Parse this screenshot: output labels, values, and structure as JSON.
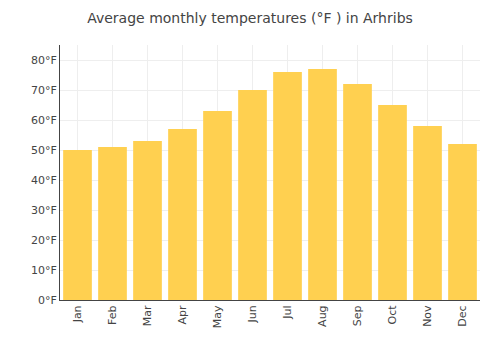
{
  "chart_data": {
    "type": "bar",
    "title": "Average monthly temperatures (°F ) in Arhribs",
    "categories": [
      "Jan",
      "Feb",
      "Mar",
      "Apr",
      "May",
      "Jun",
      "Jul",
      "Aug",
      "Sep",
      "Oct",
      "Nov",
      "Dec"
    ],
    "values": [
      50,
      51,
      53,
      57,
      63,
      70,
      76,
      77,
      72,
      65,
      58,
      52
    ],
    "color": "#FFD050",
    "ylim": [
      0,
      85
    ],
    "yticks": [
      {
        "value": 0,
        "label": "0°F"
      },
      {
        "value": 10,
        "label": "10°F"
      },
      {
        "value": 20,
        "label": "20°F"
      },
      {
        "value": 30,
        "label": "30°F"
      },
      {
        "value": 40,
        "label": "40°F"
      },
      {
        "value": 50,
        "label": "50°F"
      },
      {
        "value": 60,
        "label": "60°F"
      },
      {
        "value": 70,
        "label": "70°F"
      },
      {
        "value": 80,
        "label": "80°F"
      }
    ],
    "grid": true
  }
}
